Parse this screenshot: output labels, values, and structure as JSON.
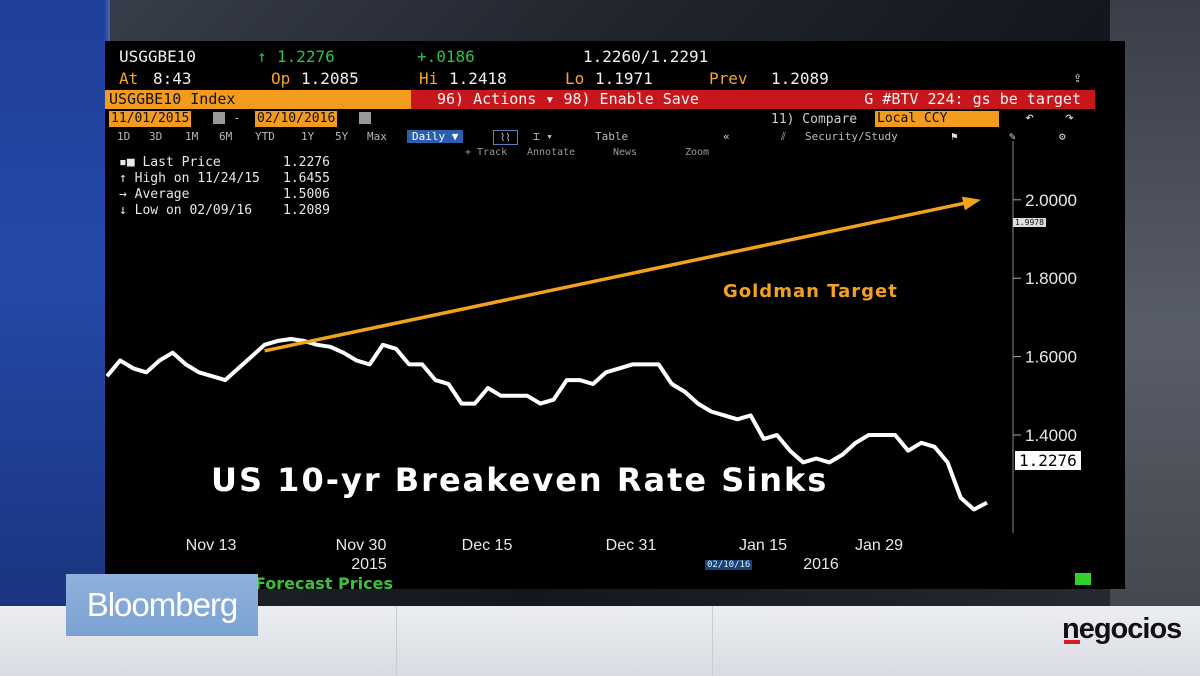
{
  "header": {
    "ticker": "USGGBE10",
    "arrow": "↑",
    "last": "1.2276",
    "change": "+.0186",
    "bid_ask": "1.2260/1.2291",
    "at_label": "At",
    "at_time": "8:43",
    "open_label": "Op",
    "open": "1.2085",
    "hi_label": "Hi",
    "hi": "1.2418",
    "lo_label": "Lo",
    "lo": "1.1971",
    "prev_label": "Prev",
    "prev": "1.2089"
  },
  "command_bar": {
    "security": "USGGBE10 Index",
    "actions": "96) Actions",
    "enable_save": "98) Enable Save",
    "message": "G #BTV 224: gs be target"
  },
  "dates": {
    "start": "11/01/2015",
    "end": "02/10/2016"
  },
  "compare": {
    "label": "11) Compare",
    "value": "Local CCY"
  },
  "toolbar": {
    "ranges": [
      "1D",
      "3D",
      "1M",
      "6M",
      "YTD",
      "1Y",
      "5Y",
      "Max"
    ],
    "period": "Daily ▼",
    "table": "Table",
    "security_study": "Security/Study",
    "track": "+ Track",
    "annotate": "Annotate",
    "news": "News",
    "zoom": "Zoom"
  },
  "legend": [
    {
      "label": "Last Price",
      "value": "1.2276"
    },
    {
      "label": "High on 11/24/15",
      "value": "1.6455"
    },
    {
      "label": "Average",
      "value": "1.5006"
    },
    {
      "label": "Low on 02/09/16",
      "value": "1.2089"
    }
  ],
  "overlay": {
    "headline": "US 10-yr Breakeven Rate Sinks",
    "target_label": "Goldman Target",
    "forecast": "Forecast Prices",
    "date_stamp": "02/10/16",
    "small_tag": "1.9978"
  },
  "colors": {
    "series": "#ffffff",
    "target": "#f2a21f",
    "accent": "#f39b1c"
  },
  "chart_data": {
    "type": "line",
    "title": "US 10-yr Breakeven Rate Sinks",
    "xlabel": "",
    "ylabel": "",
    "x_ticks": [
      "Nov 13",
      "Nov 30",
      "Dec 15",
      "Dec 31",
      "Jan 15",
      "Jan 29"
    ],
    "year_labels": [
      "2015",
      "2016"
    ],
    "y_ticks": [
      "2.0000",
      "1.8000",
      "1.6000",
      "1.4000"
    ],
    "ylim": [
      1.15,
      2.15
    ],
    "last_value_label": "1.2276",
    "series": [
      {
        "values": [
          1.55,
          1.59,
          1.57,
          1.56,
          1.59,
          1.61,
          1.58,
          1.56,
          1.55,
          1.54,
          1.57,
          1.6,
          1.63,
          1.64,
          1.645,
          1.64,
          1.63,
          1.625,
          1.61,
          1.59,
          1.58,
          1.63,
          1.62,
          1.58,
          1.58,
          1.54,
          1.53,
          1.48,
          1.48,
          1.52,
          1.5,
          1.5,
          1.5,
          1.48,
          1.49,
          1.54,
          1.54,
          1.53,
          1.56,
          1.57,
          1.58,
          1.58,
          1.58,
          1.53,
          1.51,
          1.48,
          1.46,
          1.45,
          1.44,
          1.45,
          1.39,
          1.4,
          1.36,
          1.33,
          1.34,
          1.33,
          1.35,
          1.38,
          1.4,
          1.4,
          1.4,
          1.36,
          1.38,
          1.37,
          1.33,
          1.24,
          1.21,
          1.2276
        ],
        "x_start": "2015-11-01",
        "x_end": "2016-02-10"
      }
    ],
    "annotation": {
      "text": "Goldman Target",
      "from_value": 1.63,
      "to_value": 2.0
    }
  }
}
